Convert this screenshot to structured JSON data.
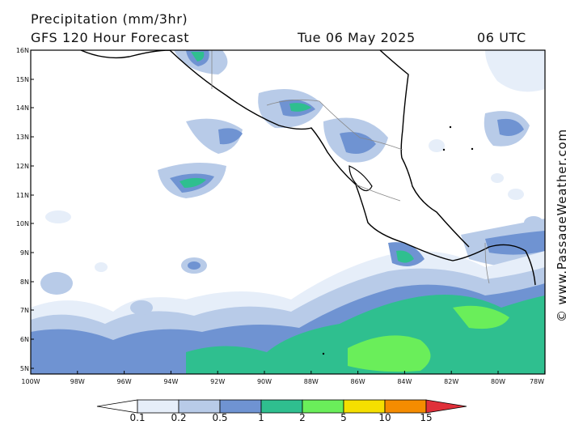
{
  "header": {
    "title": "Precipitation (mm/3hr)",
    "model": "GFS 120 Hour Forecast",
    "date": "Tue 06 May 2025",
    "time": "06 UTC"
  },
  "axes": {
    "lat_labels": [
      "16N",
      "15N",
      "14N",
      "13N",
      "12N",
      "11N",
      "10N",
      "9N",
      "8N",
      "7N",
      "6N",
      "5N"
    ],
    "lon_labels": [
      "100W",
      "98W",
      "96W",
      "94W",
      "92W",
      "90W",
      "88W",
      "86W",
      "84W",
      "82W",
      "80W",
      "78W"
    ]
  },
  "legend": {
    "thresholds": [
      "0.1",
      "0.2",
      "0.5",
      "1",
      "2",
      "5",
      "10",
      "15"
    ],
    "colors": [
      "#ffffff",
      "#e6eef9",
      "#b8cbe8",
      "#6f93d2",
      "#2fbf8f",
      "#6aee5a",
      "#f5df00",
      "#f58c00",
      "#e0303a"
    ]
  },
  "credit": "© www.PassageWeather.com"
}
